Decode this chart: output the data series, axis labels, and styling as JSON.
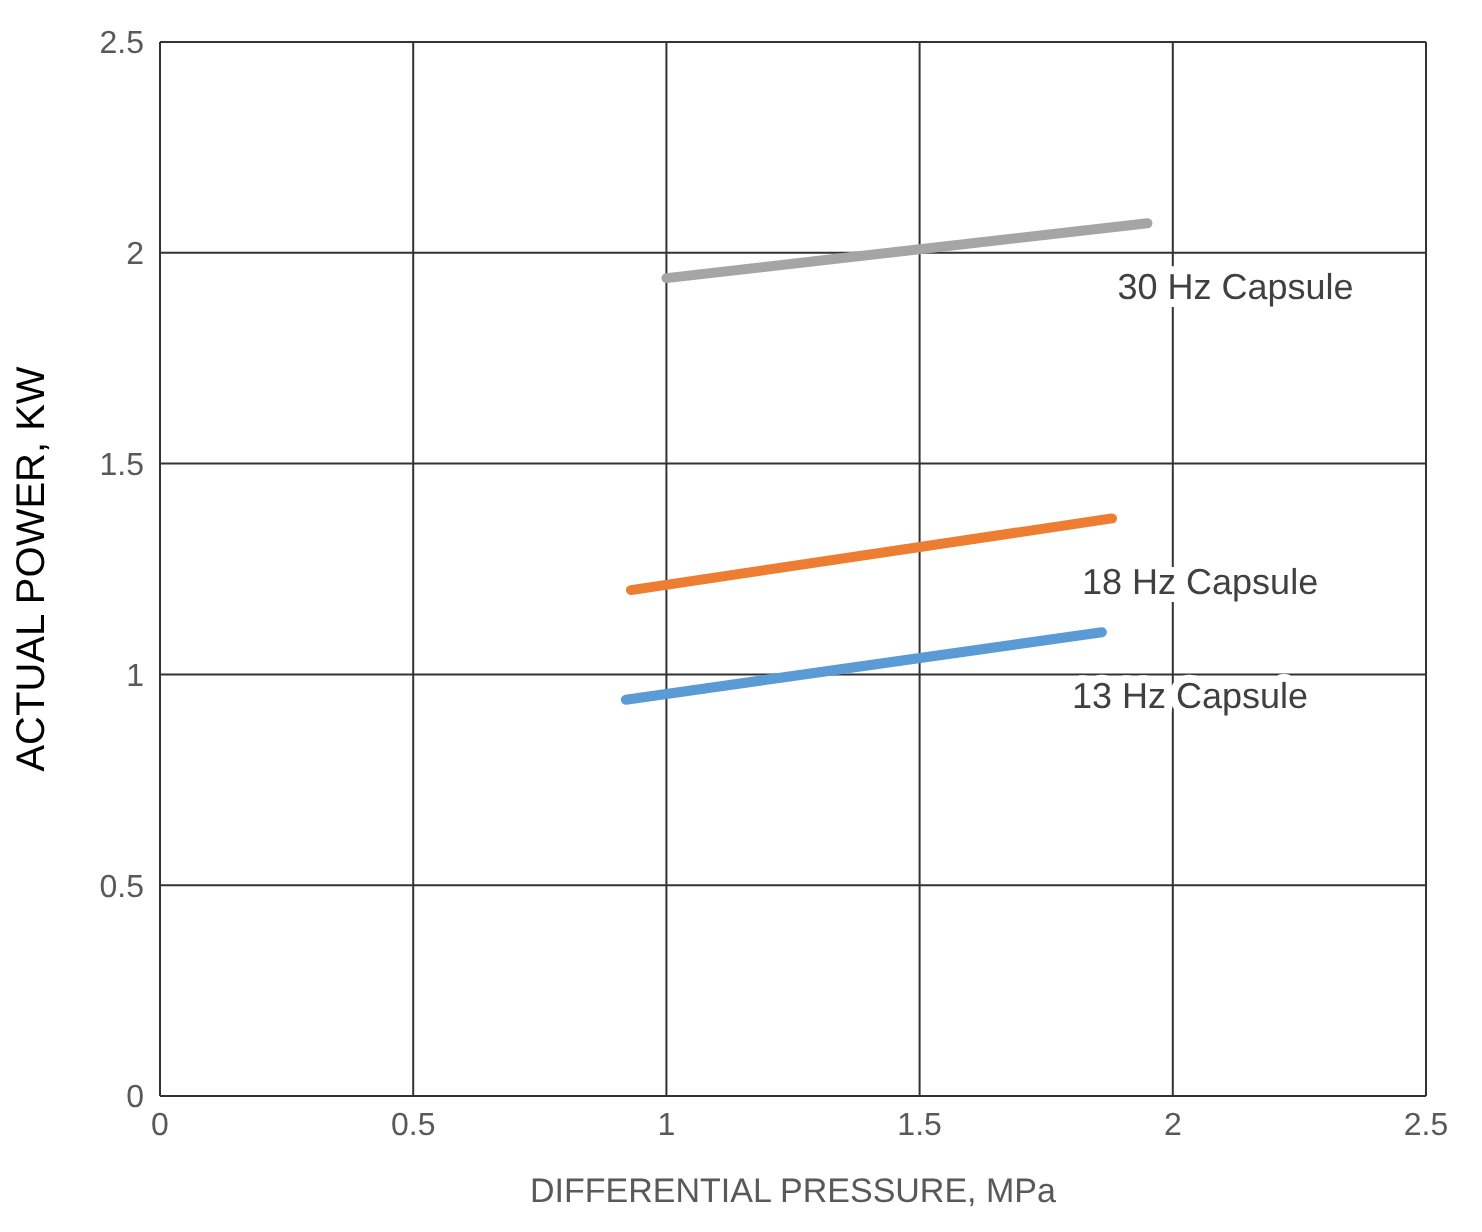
{
  "chart_data": {
    "type": "line",
    "xlabel": "DIFFERENTIAL PRESSURE, MPa",
    "ylabel": "ACTUAL POWER, KW",
    "xlim": [
      0,
      2.5
    ],
    "xticks": [
      0,
      0.5,
      1,
      1.5,
      2,
      2.5
    ],
    "ylim": [
      0,
      2.5
    ],
    "yticks": [
      0,
      0.5,
      1,
      1.5,
      2,
      2.5
    ],
    "grid": true,
    "series": [
      {
        "name": "30 Hz Capsule",
        "color": "#a5a5a5",
        "x": [
          1.0,
          1.95
        ],
        "values": [
          1.94,
          2.07
        ]
      },
      {
        "name": "18 Hz Capsule",
        "color": "#ed7d31",
        "x": [
          0.93,
          1.88
        ],
        "values": [
          1.2,
          1.37
        ]
      },
      {
        "name": "13 Hz Capsule",
        "color": "#5b9bd5",
        "x": [
          0.92,
          1.86
        ],
        "values": [
          0.94,
          1.1
        ]
      }
    ]
  }
}
